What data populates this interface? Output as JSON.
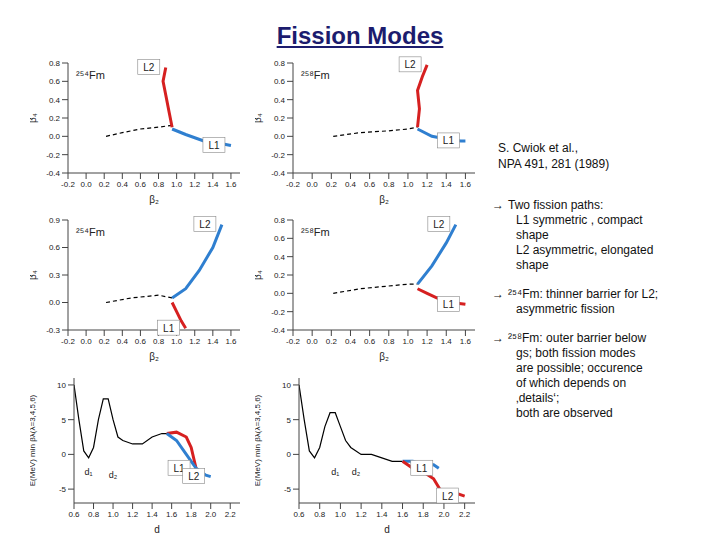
{
  "title": "Fission Modes",
  "chart_data": [
    {
      "type": "line",
      "title": "²⁵⁴Fm",
      "xlabel": "β₂",
      "ylabel": "β₄",
      "grid": false,
      "xlim": [
        -0.2,
        1.7
      ],
      "xticks": [
        -0.2,
        {
          "value": 0,
          "label": "0.0"
        },
        0.2,
        0.4,
        0.6,
        0.8,
        {
          "value": 1,
          "label": "1.0"
        },
        1.2,
        1.4,
        1.6
      ],
      "ylim": [
        -0.4,
        0.8
      ],
      "yticks": [
        -0.4,
        -0.2,
        {
          "value": 0,
          "label": "0.0"
        },
        0.2,
        0.4,
        0.6,
        0.8
      ],
      "series": [
        {
          "color": "#000000",
          "line_style": "dashed",
          "x": [
            0.22,
            0.4,
            0.6,
            0.8,
            0.95
          ],
          "values": [
            0.0,
            0.04,
            0.08,
            0.1,
            0.12
          ]
        },
        {
          "name": "L2",
          "color": "#d62020",
          "x": [
            0.95,
            0.92,
            0.88,
            0.85,
            0.88
          ],
          "values": [
            0.1,
            0.25,
            0.45,
            0.6,
            0.75
          ]
        },
        {
          "name": "L1",
          "color": "#2f7fd0",
          "x": [
            0.95,
            1.1,
            1.3,
            1.5,
            1.6
          ],
          "values": [
            0.08,
            0.02,
            -0.05,
            -0.08,
            -0.1
          ]
        }
      ]
    },
    {
      "type": "line",
      "title": "²⁵⁸Fm",
      "xlabel": "β₂",
      "ylabel": "β₄",
      "grid": false,
      "xlim": [
        -0.2,
        1.7
      ],
      "xticks": [
        -0.2,
        {
          "value": 0,
          "label": "0.0"
        },
        0.2,
        0.4,
        0.6,
        0.8,
        {
          "value": 1,
          "label": "1.0"
        },
        1.2,
        1.4,
        1.6
      ],
      "ylim": [
        -0.4,
        0.8
      ],
      "yticks": [
        -0.4,
        -0.2,
        {
          "value": 0,
          "label": "0.0"
        },
        0.2,
        0.4,
        0.6,
        0.8
      ],
      "series": [
        {
          "color": "#000000",
          "line_style": "dashed",
          "x": [
            0.22,
            0.5,
            0.8,
            1.0,
            1.1
          ],
          "values": [
            0.0,
            0.04,
            0.06,
            0.08,
            0.1
          ]
        },
        {
          "name": "L2",
          "color": "#d62020",
          "x": [
            1.1,
            1.12,
            1.1,
            1.15,
            1.2
          ],
          "values": [
            0.1,
            0.3,
            0.5,
            0.65,
            0.78
          ]
        },
        {
          "name": "L1",
          "color": "#2f7fd0",
          "x": [
            1.1,
            1.25,
            1.4,
            1.55,
            1.6
          ],
          "values": [
            0.08,
            0.0,
            -0.03,
            -0.05,
            -0.05
          ]
        }
      ]
    },
    {
      "type": "line",
      "title": "²⁵⁴Fm",
      "xlabel": "β₂",
      "ylabel": "β₄",
      "grid": false,
      "xlim": [
        -0.2,
        1.7
      ],
      "xticks": [
        -0.2,
        {
          "value": 0,
          "label": "0.0"
        },
        0.2,
        0.4,
        0.6,
        0.8,
        {
          "value": 1,
          "label": "1.0"
        },
        1.2,
        1.4,
        1.6
      ],
      "ylim": [
        -0.3,
        0.9
      ],
      "yticks": [
        -0.3,
        {
          "value": 0,
          "label": "0.0"
        },
        0.3,
        0.6,
        0.9
      ],
      "series": [
        {
          "color": "#000000",
          "line_style": "dashed",
          "x": [
            0.22,
            0.5,
            0.8,
            0.95
          ],
          "values": [
            0.0,
            0.05,
            0.08,
            0.05
          ]
        },
        {
          "name": "L2",
          "color": "#2f7fd0",
          "x": [
            0.95,
            1.1,
            1.25,
            1.4,
            1.5
          ],
          "values": [
            0.05,
            0.15,
            0.35,
            0.6,
            0.85
          ]
        },
        {
          "name": "L1",
          "color": "#d62020",
          "x": [
            0.95,
            1.0,
            1.05,
            1.1
          ],
          "values": [
            0.0,
            -0.1,
            -0.2,
            -0.28
          ]
        }
      ]
    },
    {
      "type": "line",
      "title": "²⁵⁸Fm",
      "xlabel": "β₂",
      "ylabel": "β₄",
      "grid": false,
      "xlim": [
        -0.2,
        1.7
      ],
      "xticks": [
        -0.2,
        {
          "value": 0,
          "label": "0.0"
        },
        0.2,
        0.4,
        0.6,
        0.8,
        {
          "value": 1,
          "label": "1.0"
        },
        1.2,
        1.4,
        1.6
      ],
      "ylim": [
        -0.4,
        0.8
      ],
      "yticks": [
        -0.4,
        -0.2,
        {
          "value": 0,
          "label": "0.0"
        },
        0.2,
        0.4,
        0.6,
        0.8
      ],
      "series": [
        {
          "color": "#000000",
          "line_style": "dashed",
          "x": [
            0.22,
            0.5,
            0.8,
            1.0,
            1.1
          ],
          "values": [
            0.0,
            0.05,
            0.08,
            0.1,
            0.1
          ]
        },
        {
          "name": "L2",
          "color": "#2f7fd0",
          "x": [
            1.1,
            1.25,
            1.4,
            1.5
          ],
          "values": [
            0.1,
            0.3,
            0.55,
            0.75
          ]
        },
        {
          "name": "L1",
          "color": "#d62020",
          "x": [
            1.1,
            1.2,
            1.3,
            1.45,
            1.6
          ],
          "values": [
            0.05,
            0.0,
            -0.05,
            -0.1,
            -0.12
          ]
        }
      ]
    },
    {
      "type": "line",
      "xlabel": "d",
      "ylabel": "E(MeV)   min βλ(λ=3,4,5,6)",
      "grid": false,
      "xlim": [
        0.6,
        2.3
      ],
      "xticks": [
        0.6,
        0.8,
        {
          "value": 1,
          "label": "1.0"
        },
        1.2,
        1.4,
        1.6,
        1.8,
        {
          "value": 2,
          "label": "2.0"
        },
        2.2
      ],
      "ylim": [
        -7,
        11
      ],
      "yticks": [
        -5,
        0,
        5,
        10
      ],
      "series": [
        {
          "color": "#000000",
          "line_style": "solid",
          "x": [
            0.6,
            0.65,
            0.7,
            0.75,
            0.8,
            0.85,
            0.9,
            0.95,
            1.0,
            1.05,
            1.1,
            1.2,
            1.3,
            1.4,
            1.5,
            1.55
          ],
          "values": [
            10,
            5,
            0.5,
            -0.5,
            1,
            5,
            8,
            8,
            5,
            2.5,
            2,
            1.5,
            1.5,
            2.5,
            3,
            3
          ]
        },
        {
          "name": "L1",
          "color": "#d62020",
          "x": [
            1.55,
            1.65,
            1.75,
            1.8,
            1.85
          ],
          "values": [
            3,
            3.2,
            2.5,
            1,
            -2
          ]
        },
        {
          "name": "L2",
          "color": "#2f7fd0",
          "x": [
            1.55,
            1.65,
            1.75,
            1.85,
            1.95,
            2.0
          ],
          "values": [
            3,
            2,
            0,
            -2,
            -3,
            -3.2
          ]
        }
      ],
      "annotations": [
        {
          "text": "d₁",
          "x": 0.75,
          "y": -2.5
        },
        {
          "text": "d₂",
          "x": 1.0,
          "y": -3
        }
      ]
    },
    {
      "type": "line",
      "xlabel": "d",
      "ylabel": "E(MeV)   min βλ(λ=3,4,5,6)",
      "grid": false,
      "xlim": [
        0.6,
        2.3
      ],
      "xticks": [
        0.6,
        0.8,
        {
          "value": 1,
          "label": "1.0"
        },
        1.2,
        1.4,
        1.6,
        1.8,
        {
          "value": 2,
          "label": "2.0"
        },
        2.2
      ],
      "ylim": [
        -7,
        11
      ],
      "yticks": [
        -5,
        0,
        5,
        10
      ],
      "series": [
        {
          "color": "#000000",
          "line_style": "solid",
          "x": [
            0.6,
            0.65,
            0.7,
            0.75,
            0.8,
            0.85,
            0.9,
            0.95,
            1.0,
            1.05,
            1.1,
            1.2,
            1.3,
            1.4,
            1.5,
            1.6
          ],
          "values": [
            10,
            5,
            0.5,
            -0.5,
            1,
            4,
            6,
            6,
            4,
            2,
            1,
            0,
            0,
            -0.5,
            -1,
            -1
          ]
        },
        {
          "name": "L1",
          "color": "#2f7fd0",
          "x": [
            1.6,
            1.7,
            1.8,
            1.9,
            1.95
          ],
          "values": [
            -1,
            -1,
            -1.5,
            -1.5,
            -2
          ]
        },
        {
          "name": "L2",
          "color": "#d62020",
          "x": [
            1.6,
            1.7,
            1.8,
            1.9,
            2.0,
            2.1,
            2.2
          ],
          "values": [
            -1,
            -2,
            -2.5,
            -3.5,
            -6,
            -5.5,
            -6
          ]
        }
      ],
      "annotations": [
        {
          "text": "d₁",
          "x": 0.95,
          "y": -2.5
        },
        {
          "text": "d₂",
          "x": 1.15,
          "y": -2.5
        }
      ]
    }
  ],
  "notes": {
    "citation": [
      "S. Cwiok et al.,",
      "NPA 491, 281 (1989)"
    ],
    "bullets": [
      {
        "bullet": "→",
        "lines": [
          "Two fission paths:",
          "L1 symmetric , compact",
          "shape",
          "L2  asymmetric, elongated",
          "shape"
        ]
      },
      {
        "bullet": "→",
        "lines": [
          "²⁵⁴Fm: thinner barrier for L2;",
          "asymmetric fission"
        ]
      },
      {
        "bullet": "→",
        "lines": [
          "²⁵⁸Fm: outer barrier below",
          "gs; both fission modes",
          "are possible; occurence",
          "of which depends on",
          "‚details‘;",
          "both are observed"
        ]
      }
    ]
  }
}
